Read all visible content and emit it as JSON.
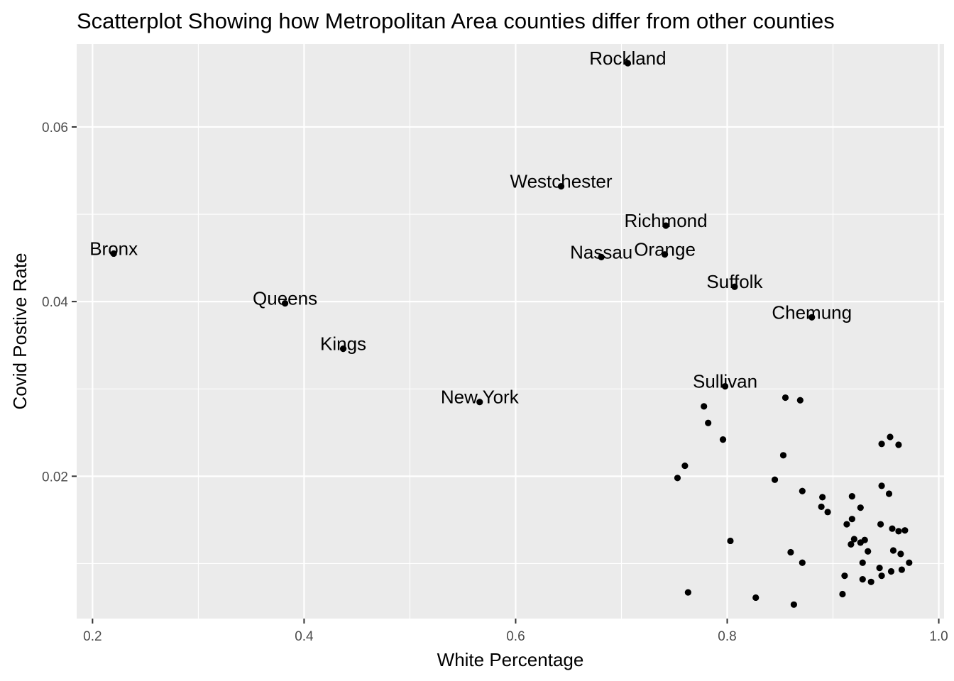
{
  "chart_data": {
    "type": "scatter",
    "title": "Scatterplot Showing how Metropolitan Area counties differ from other counties",
    "xlabel": "White Percentage",
    "ylabel": "Covid Postive Rate",
    "xlim": [
      0.185,
      1.005
    ],
    "ylim": [
      0.0037,
      0.0695
    ],
    "x_ticks": [
      0.2,
      0.4,
      0.6,
      0.8,
      1.0
    ],
    "x_tick_labels": [
      "0.2",
      "0.4",
      "0.6",
      "0.8",
      "1.0"
    ],
    "y_ticks": [
      0.02,
      0.04,
      0.06
    ],
    "y_tick_labels": [
      "0.02",
      "0.04",
      "0.06"
    ],
    "grid": true,
    "colors": {
      "panel": "#ebebeb",
      "grid": "#ffffff",
      "point": "#000000",
      "tick": "#4d4d4d"
    },
    "labeled_points": [
      {
        "label": "Rockland",
        "x": 0.706,
        "y": 0.0673
      },
      {
        "label": "Westchester",
        "x": 0.643,
        "y": 0.0532
      },
      {
        "label": "Richmond",
        "x": 0.742,
        "y": 0.0487
      },
      {
        "label": "Bronx",
        "x": 0.22,
        "y": 0.0455
      },
      {
        "label": "Nassau",
        "x": 0.681,
        "y": 0.0451
      },
      {
        "label": "Orange",
        "x": 0.741,
        "y": 0.0454
      },
      {
        "label": "Suffolk",
        "x": 0.807,
        "y": 0.0417
      },
      {
        "label": "Queens",
        "x": 0.382,
        "y": 0.0398
      },
      {
        "label": "Chemung",
        "x": 0.88,
        "y": 0.0382
      },
      {
        "label": "Kings",
        "x": 0.437,
        "y": 0.0346
      },
      {
        "label": "Sullivan",
        "x": 0.798,
        "y": 0.0303
      },
      {
        "label": "New York",
        "x": 0.566,
        "y": 0.0285
      }
    ],
    "points": [
      {
        "x": 0.855,
        "y": 0.029
      },
      {
        "x": 0.869,
        "y": 0.0287
      },
      {
        "x": 0.778,
        "y": 0.028
      },
      {
        "x": 0.782,
        "y": 0.0261
      },
      {
        "x": 0.796,
        "y": 0.0242
      },
      {
        "x": 0.954,
        "y": 0.0245
      },
      {
        "x": 0.946,
        "y": 0.0237
      },
      {
        "x": 0.962,
        "y": 0.0236
      },
      {
        "x": 0.853,
        "y": 0.0224
      },
      {
        "x": 0.76,
        "y": 0.0212
      },
      {
        "x": 0.753,
        "y": 0.0198
      },
      {
        "x": 0.845,
        "y": 0.0196
      },
      {
        "x": 0.946,
        "y": 0.0189
      },
      {
        "x": 0.871,
        "y": 0.0183
      },
      {
        "x": 0.953,
        "y": 0.018
      },
      {
        "x": 0.89,
        "y": 0.0176
      },
      {
        "x": 0.918,
        "y": 0.0177
      },
      {
        "x": 0.889,
        "y": 0.0165
      },
      {
        "x": 0.926,
        "y": 0.0164
      },
      {
        "x": 0.895,
        "y": 0.0159
      },
      {
        "x": 0.918,
        "y": 0.0151
      },
      {
        "x": 0.913,
        "y": 0.0145
      },
      {
        "x": 0.945,
        "y": 0.0145
      },
      {
        "x": 0.956,
        "y": 0.014
      },
      {
        "x": 0.962,
        "y": 0.0137
      },
      {
        "x": 0.968,
        "y": 0.0138
      },
      {
        "x": 0.92,
        "y": 0.0128
      },
      {
        "x": 0.93,
        "y": 0.0127
      },
      {
        "x": 0.803,
        "y": 0.0126
      },
      {
        "x": 0.926,
        "y": 0.0124
      },
      {
        "x": 0.917,
        "y": 0.0122
      },
      {
        "x": 0.933,
        "y": 0.0114
      },
      {
        "x": 0.957,
        "y": 0.0115
      },
      {
        "x": 0.964,
        "y": 0.0111
      },
      {
        "x": 0.86,
        "y": 0.0113
      },
      {
        "x": 0.871,
        "y": 0.0101
      },
      {
        "x": 0.928,
        "y": 0.0101
      },
      {
        "x": 0.972,
        "y": 0.0101
      },
      {
        "x": 0.944,
        "y": 0.0095
      },
      {
        "x": 0.955,
        "y": 0.0091
      },
      {
        "x": 0.965,
        "y": 0.0093
      },
      {
        "x": 0.911,
        "y": 0.0086
      },
      {
        "x": 0.946,
        "y": 0.0086
      },
      {
        "x": 0.928,
        "y": 0.0082
      },
      {
        "x": 0.936,
        "y": 0.0079
      },
      {
        "x": 0.763,
        "y": 0.0067
      },
      {
        "x": 0.909,
        "y": 0.0065
      },
      {
        "x": 0.827,
        "y": 0.0061
      },
      {
        "x": 0.863,
        "y": 0.0053
      }
    ]
  }
}
